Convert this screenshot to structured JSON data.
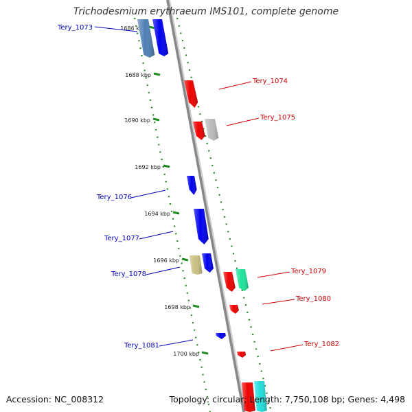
{
  "title": "Trichodesmium erythraeum IMS101, complete genome",
  "footer": {
    "accession": "Accession: NC_008312",
    "summary": "Topology: circular; Length: 7,750,108 bp; Genes: 4,498"
  },
  "scale": {
    "ticks": [
      "1686 kbp",
      "1688 kbp",
      "1690 kbp",
      "1692 kbp",
      "1694 kbp",
      "1696 kbp",
      "1698 kbp",
      "1700 kbp"
    ]
  },
  "colors": {
    "backbone": "#888888",
    "tick": "#1e8a1e",
    "forward_label": "#cc0000",
    "reverse_label": "#0000bb"
  },
  "genes": [
    {
      "name": "Tery_1073",
      "strand": "reverse",
      "color": "#0000ee"
    },
    {
      "name": "Tery_1074",
      "strand": "forward",
      "color": "#ee0000"
    },
    {
      "name": "Tery_1075",
      "strand": "forward",
      "color": "#ee0000"
    },
    {
      "name": "Tery_1076",
      "strand": "reverse",
      "color": "#0000ee"
    },
    {
      "name": "Tery_1077",
      "strand": "reverse",
      "color": "#0000ee"
    },
    {
      "name": "Tery_1078",
      "strand": "reverse",
      "color": "#0000ee"
    },
    {
      "name": "Tery_1079",
      "strand": "forward",
      "color": "#ee0000"
    },
    {
      "name": "Tery_1080",
      "strand": "forward",
      "color": "#ee0000"
    },
    {
      "name": "Tery_1081",
      "strand": "reverse",
      "color": "#0000ee"
    },
    {
      "name": "Tery_1082",
      "strand": "forward",
      "color": "#ee0000"
    }
  ],
  "other_features": [
    {
      "kind": "reverse-gene",
      "color": "#4f7fb3"
    },
    {
      "kind": "forward-gene",
      "color": "#bbbbbb"
    },
    {
      "kind": "reverse-gene",
      "color": "#c8bf80"
    },
    {
      "kind": "forward-gene",
      "color": "#1fe39a"
    },
    {
      "kind": "forward-gene",
      "color": "#22dddd"
    }
  ]
}
